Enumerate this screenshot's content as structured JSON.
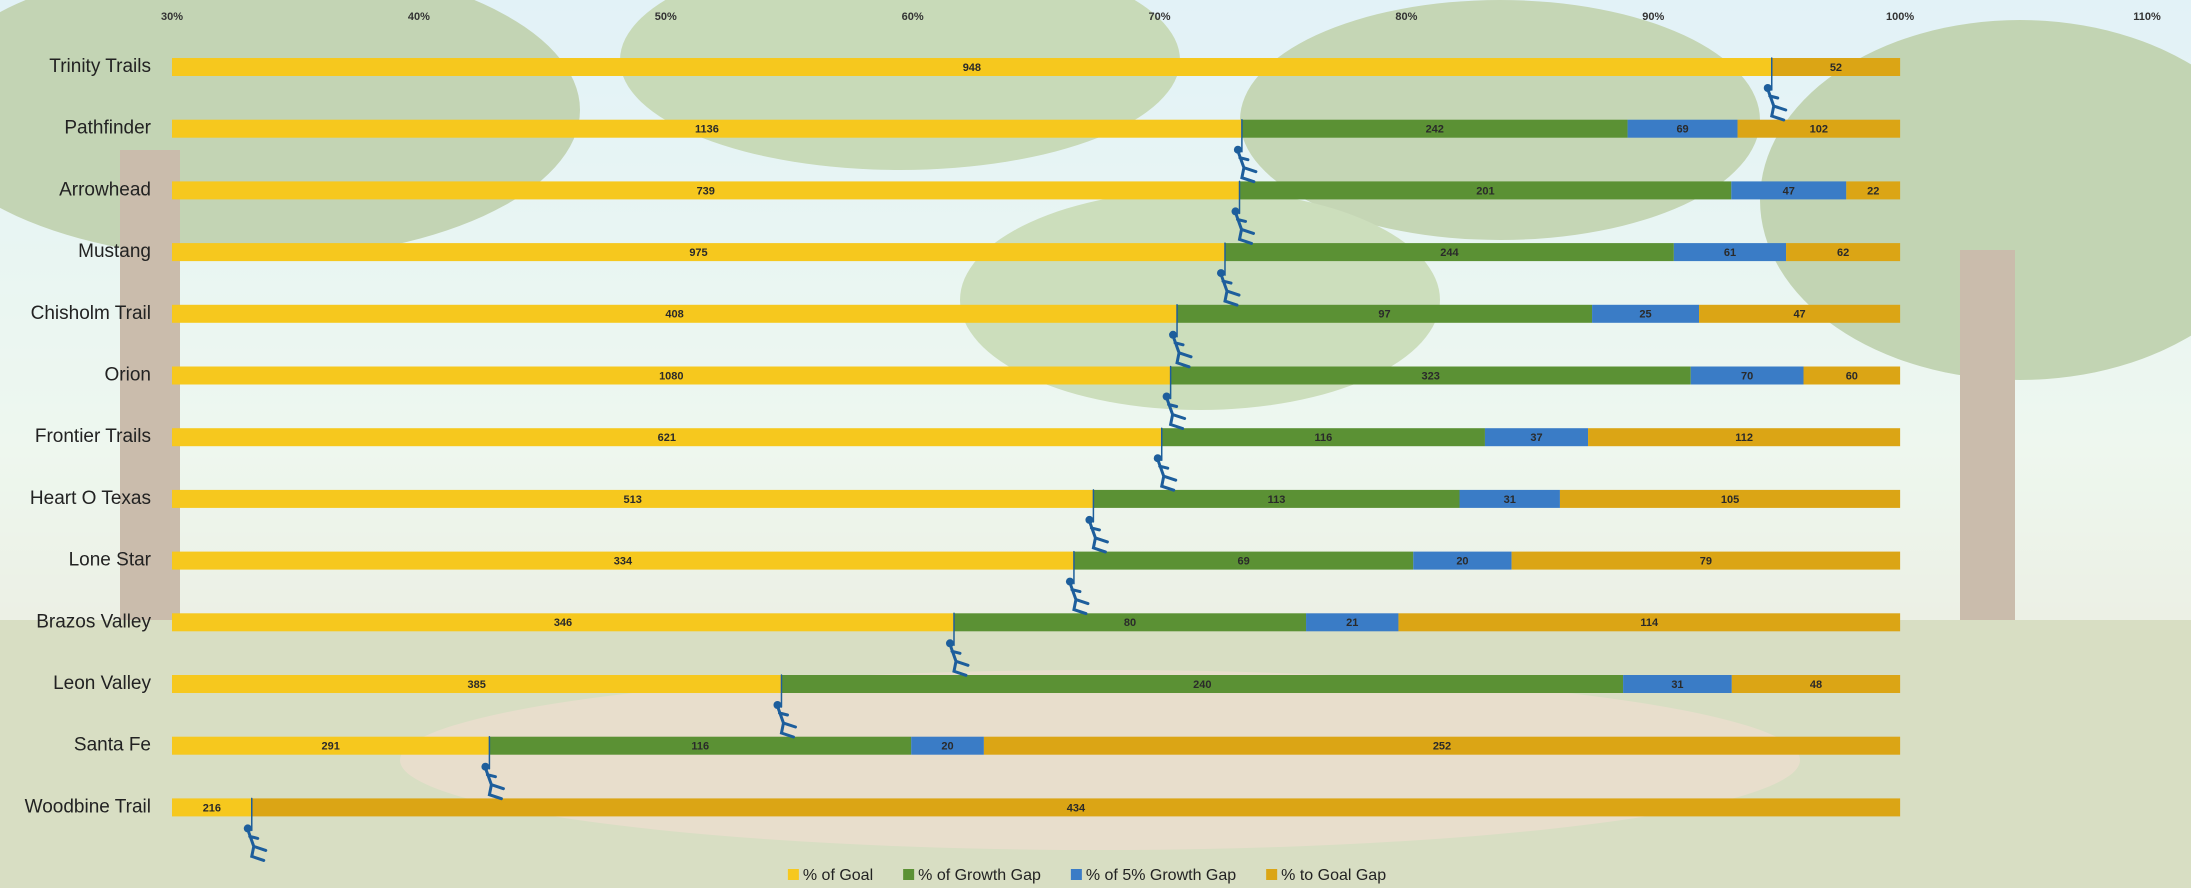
{
  "chart_data": {
    "type": "bar",
    "orientation": "horizontal",
    "stacked": "percent",
    "categories": [
      "Trinity Trails",
      "Pathfinder",
      "Arrowhead",
      "Mustang",
      "Chisholm Trail",
      "Orion",
      "Frontier Trails",
      "Heart O Texas",
      "Lone Star",
      "Brazos Valley",
      "Leon Valley",
      "Santa Fe",
      "Woodbine Trail"
    ],
    "series": [
      {
        "name": "% of Goal",
        "color": "#f6c81e",
        "values": [
          948,
          1136,
          739,
          975,
          408,
          1080,
          621,
          513,
          334,
          346,
          385,
          291,
          216
        ]
      },
      {
        "name": "% of Growth Gap",
        "color": "#5b9134",
        "values": [
          null,
          242,
          201,
          244,
          97,
          323,
          116,
          113,
          69,
          80,
          240,
          116,
          null
        ]
      },
      {
        "name": "% of 5% Growth Gap",
        "color": "#3a7cc6",
        "values": [
          null,
          69,
          47,
          61,
          25,
          70,
          37,
          31,
          20,
          21,
          31,
          20,
          null
        ]
      },
      {
        "name": "% to Goal Gap",
        "color": "#dba515",
        "values": [
          52,
          102,
          22,
          62,
          47,
          60,
          112,
          105,
          79,
          114,
          48,
          252,
          434
        ]
      }
    ],
    "xlim": [
      30,
      110
    ],
    "xticks": [
      {
        "value": 30,
        "label": "30%"
      },
      {
        "value": 40,
        "label": "40%"
      },
      {
        "value": 50,
        "label": "50%"
      },
      {
        "value": 60,
        "label": "60%"
      },
      {
        "value": 70,
        "label": "70%"
      },
      {
        "value": 80,
        "label": "80%"
      },
      {
        "value": 90,
        "label": "90%"
      },
      {
        "value": 100,
        "label": "100%"
      },
      {
        "value": 110,
        "label": "110%"
      }
    ],
    "legend": "bottom"
  }
}
